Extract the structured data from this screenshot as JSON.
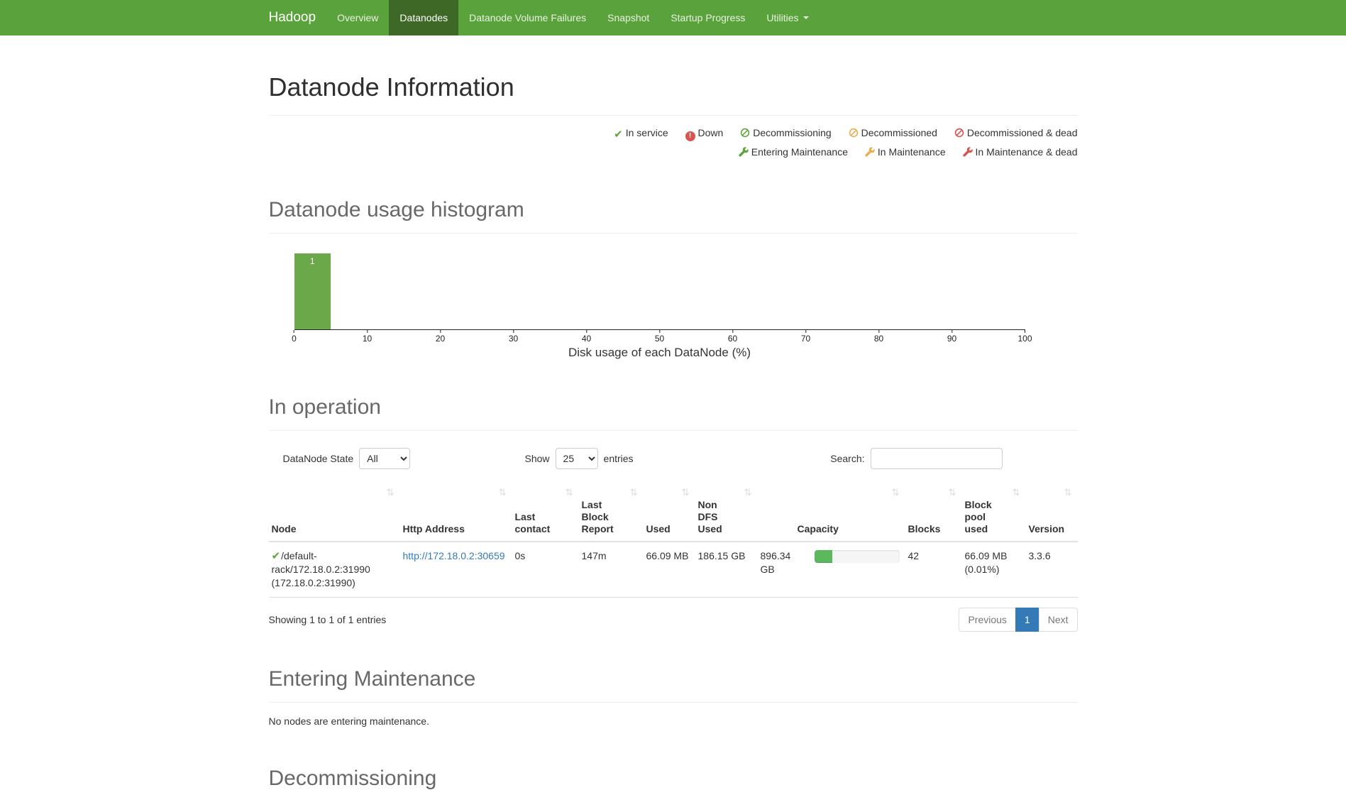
{
  "navbar": {
    "brand": "Hadoop",
    "items": [
      {
        "label": "Overview"
      },
      {
        "label": "Datanodes",
        "active": true
      },
      {
        "label": "Datanode Volume Failures"
      },
      {
        "label": "Snapshot"
      },
      {
        "label": "Startup Progress"
      },
      {
        "label": "Utilities",
        "has_dropdown": true
      }
    ]
  },
  "page": {
    "title": "Datanode Information"
  },
  "legend": {
    "row1": [
      {
        "icon": "check-icon",
        "color": "#5fa33d",
        "label": "In service"
      },
      {
        "icon": "exclamation-circle-icon",
        "color": "#d9534f",
        "label": "Down"
      },
      {
        "icon": "ban-circle-icon",
        "color": "#5fa33d",
        "label": "Decommissioning"
      },
      {
        "icon": "ban-circle-icon",
        "color": "#f0ad4e",
        "label": "Decommissioned"
      },
      {
        "icon": "ban-circle-icon",
        "color": "#d9534f",
        "label": "Decommissioned & dead"
      }
    ],
    "row2": [
      {
        "icon": "wrench-icon",
        "color": "#5fa33d",
        "label": "Entering Maintenance"
      },
      {
        "icon": "wrench-icon",
        "color": "#f0ad4e",
        "label": "In Maintenance"
      },
      {
        "icon": "wrench-icon",
        "color": "#d9534f",
        "label": "In Maintenance & dead"
      }
    ]
  },
  "histogram": {
    "title": "Datanode usage histogram",
    "chart_data": {
      "type": "bar",
      "title": "Datanode usage histogram",
      "xlabel": "Disk usage of each DataNode (%)",
      "ylabel": "",
      "xlim": [
        0,
        100
      ],
      "ylim": [
        0,
        1
      ],
      "xticks": [
        0,
        10,
        20,
        30,
        40,
        50,
        60,
        70,
        80,
        90,
        100
      ],
      "bins": [
        {
          "range": [
            0,
            5
          ],
          "count": 1
        }
      ],
      "bar_color": "#6aa84a",
      "grid": false
    }
  },
  "in_operation": {
    "title": "In operation",
    "state_filter_label": "DataNode State",
    "state_filter_value": "All",
    "show_label": "Show",
    "show_value": "25",
    "entries_label": "entries",
    "search_label": "Search:",
    "search_value": "",
    "table": {
      "columns": [
        "Node",
        "Http Address",
        "Last contact",
        "Last Block Report",
        "Used",
        "Non DFS Used",
        "Capacity",
        "Blocks",
        "Block pool used",
        "Version"
      ],
      "rows": [
        {
          "status_icon": "check-icon",
          "node": "/default-rack/172.18.0.2:31990 (172.18.0.2:31990)",
          "http_address": "http://172.18.0.2:30659",
          "last_contact": "0s",
          "last_block_report": "147m",
          "used": "66.09 MB",
          "non_dfs_used": "186.15 GB",
          "capacity": "896.34 GB",
          "capacity_used_percent": 21,
          "blocks": "42",
          "block_pool_used": "66.09 MB (0.01%)",
          "version": "3.3.6"
        }
      ]
    },
    "summary": "Showing 1 to 1 of 1 entries",
    "pagination": {
      "previous": "Previous",
      "current": "1",
      "next": "Next"
    }
  },
  "entering_maintenance": {
    "title": "Entering Maintenance",
    "empty_message": "No nodes are entering maintenance."
  },
  "decommissioning": {
    "title": "Decommissioning"
  },
  "colors": {
    "navbar_bg": "#5aa23b",
    "navbar_active_bg": "#3e6826",
    "histogram_bar": "#6aa84a",
    "progress_fill": "#5cb85c",
    "link": "#337ab7",
    "pagination_active": "#337ab7",
    "status_ok": "#5fa33d",
    "status_warn": "#f0ad4e",
    "status_dead": "#d9534f"
  }
}
